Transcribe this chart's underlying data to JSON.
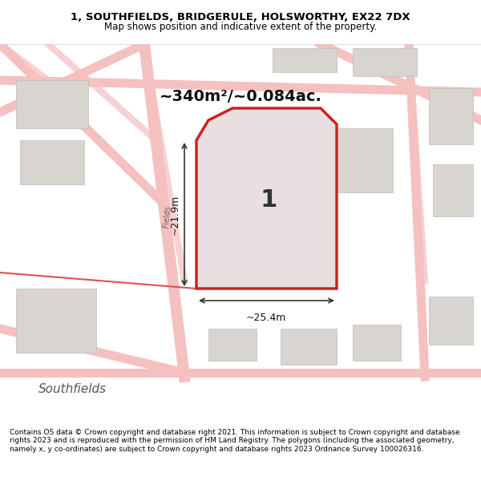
{
  "title_line1": "1, SOUTHFIELDS, BRIDGERULE, HOLSWORTHY, EX22 7DX",
  "title_line2": "Map shows position and indicative extent of the property.",
  "area_text": "~340m²/~0.084ac.",
  "label_number": "1",
  "dim_width": "~25.4m",
  "dim_height": "~21.9m",
  "footer_text": "Contains OS data © Crown copyright and database right 2021. This information is subject to Crown copyright and database rights 2023 and is reproduced with the permission of HM Land Registry. The polygons (including the associated geometry, namely x, y co-ordinates) are subject to Crown copyright and database rights 2023 Ordnance Survey 100026316.",
  "bg_color": "#f0efee",
  "map_bg": "#e8e6e4",
  "road_color_light": "#f5c0c0",
  "road_color_red": "#e05050",
  "property_fill": "#e8e0e0",
  "property_edge": "#cc2222",
  "street_label": "Southfields",
  "street_label2": "Fields",
  "title_bg": "#ffffff",
  "footer_bg": "#ffffff"
}
